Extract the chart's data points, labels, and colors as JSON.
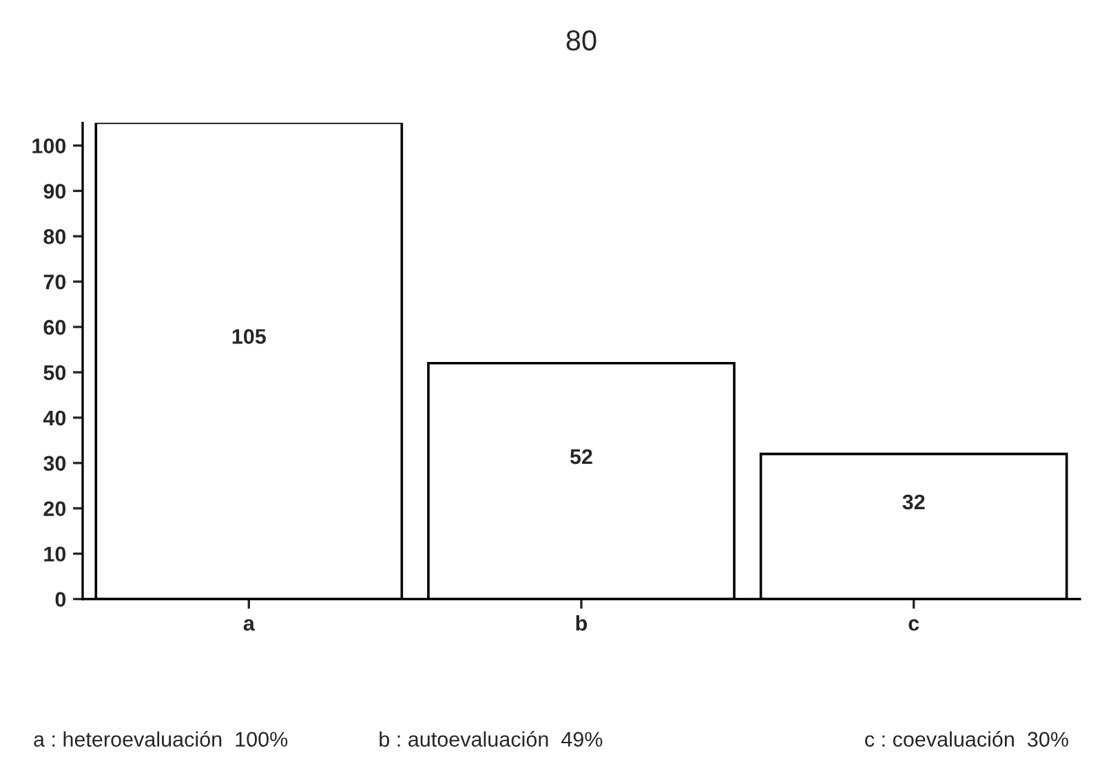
{
  "chart_data": {
    "type": "bar",
    "title": "80",
    "categories": [
      "a",
      "b",
      "c"
    ],
    "values": [
      105,
      52,
      32
    ],
    "color": "#ffffff",
    "ylim": [
      0,
      105
    ],
    "yticks": [
      0,
      10,
      20,
      30,
      40,
      50,
      60,
      70,
      80,
      90,
      100
    ],
    "data_labels": true,
    "grid": false,
    "annotations": [
      "a : heteroevaluación  100%",
      "b : autoevaluación  49%",
      "c : coevaluación  30%"
    ]
  }
}
